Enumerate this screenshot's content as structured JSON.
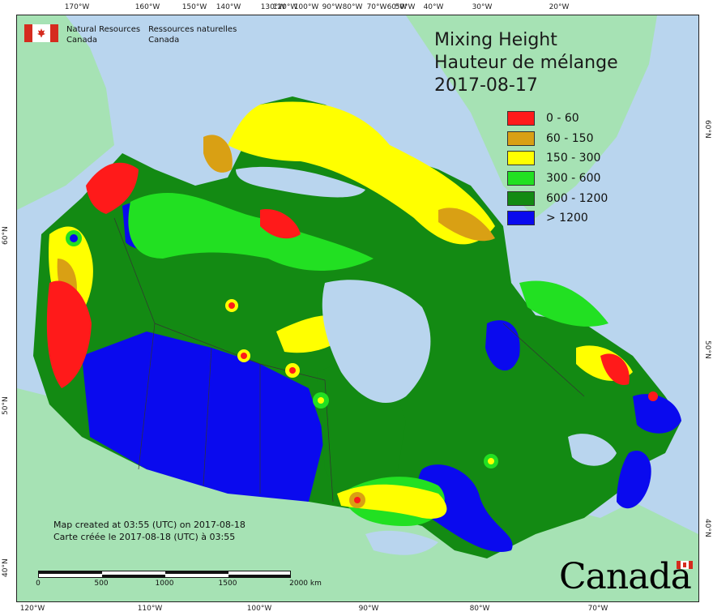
{
  "map": {
    "title_en": "Mixing Height",
    "title_fr": "Hauteur de mélange",
    "date": "2017-08-17",
    "agency_en": [
      "Natural Resources",
      "Canada"
    ],
    "agency_fr": [
      "Ressources naturelles",
      "Canada"
    ],
    "credit_en": "Map created at 03:55 (UTC) on 2017-08-18",
    "credit_fr": "Carte créée le 2017-08-18 (UTC) à 03:55",
    "wordmark": "Canada"
  },
  "legend": [
    {
      "label": "0 - 60",
      "color": "#ff1a1a"
    },
    {
      "label": "60 - 150",
      "color": "#d9a014"
    },
    {
      "label": "150 - 300",
      "color": "#ffff00"
    },
    {
      "label": "300 - 600",
      "color": "#22e022"
    },
    {
      "label": "600 - 1200",
      "color": "#138a13"
    },
    {
      "label": "> 1200",
      "color": "#0a0aee"
    }
  ],
  "scale": {
    "labels": [
      "0",
      "500",
      "1000",
      "1500",
      "2000  km"
    ]
  },
  "graticule": {
    "top": [
      "170°W",
      "160°W",
      "150°W",
      "140°W",
      "130°W",
      "120°W",
      "100°W",
      "90°W",
      "80°W",
      "70°W",
      "60°W",
      "50°W",
      "40°W",
      "30°W",
      "20°W"
    ],
    "bottom": [
      "120°W",
      "110°W",
      "100°W",
      "90°W",
      "80°W",
      "70°W"
    ],
    "left": [
      "60°N",
      "50°N",
      "40°N"
    ],
    "right": [
      "60°N",
      "50°N",
      "40°N"
    ]
  },
  "colors": {
    "water": "#b9d5ee",
    "other_land": "#a6e2b4"
  }
}
